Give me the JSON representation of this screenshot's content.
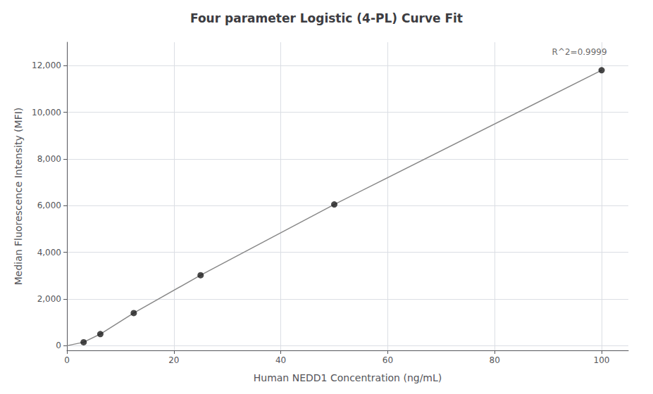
{
  "chart_data": {
    "type": "scatter",
    "title": "Four parameter Logistic (4-PL) Curve Fit",
    "xlabel": "Human NEDD1 Concentration (ng/mL)",
    "ylabel": "Median Fluorescence Intensity (MFI)",
    "series": [
      {
        "type": "line",
        "color": "#888888",
        "x": [
          0,
          3.125,
          6.25,
          12.5,
          25,
          50,
          100
        ],
        "values": [
          0,
          150,
          500,
          1400,
          3020,
          6050,
          11800
        ]
      },
      {
        "type": "scatter",
        "color": "#1a1a1a",
        "x": [
          3.125,
          6.25,
          12.5,
          25,
          50,
          100
        ],
        "values": [
          150,
          500,
          1400,
          3020,
          6050,
          11800
        ]
      }
    ],
    "xlim": [
      0,
      105
    ],
    "ylim": [
      -200,
      13000
    ],
    "xticks": [
      0,
      20,
      40,
      60,
      80,
      100
    ],
    "yticks": [
      0,
      {
        "value": 2000,
        "label": "2,000"
      },
      {
        "value": 4000,
        "label": "4,000"
      },
      {
        "value": 6000,
        "label": "6,000"
      },
      {
        "value": 8000,
        "label": "8,000"
      },
      {
        "value": 10000,
        "label": "10,000"
      },
      {
        "value": 12000,
        "label": "12,000"
      }
    ],
    "grid": true,
    "annotations": [
      {
        "text": "R^2=0.9999",
        "x": 101,
        "y": 12400
      }
    ]
  }
}
